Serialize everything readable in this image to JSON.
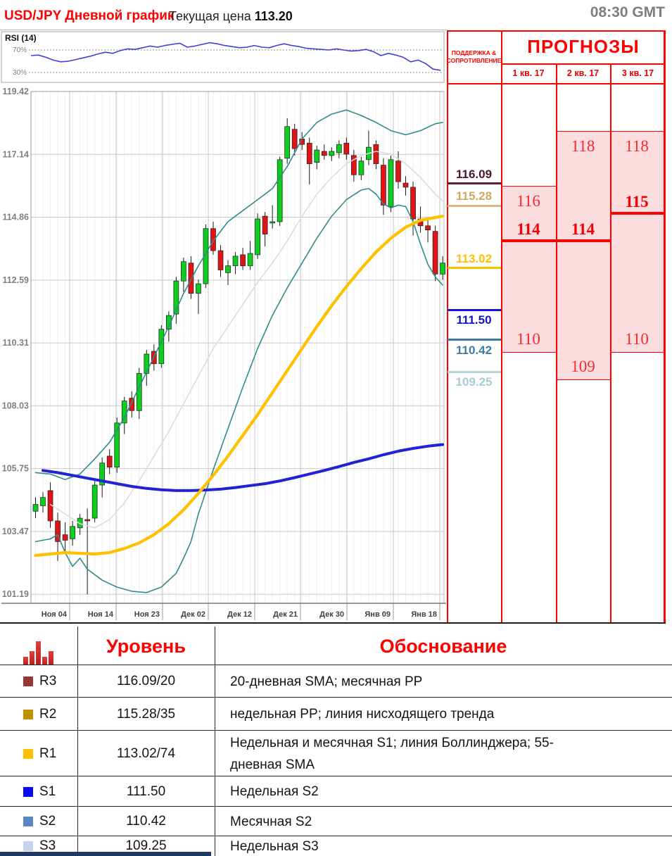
{
  "header": {
    "title": "USD/JPY Дневной график",
    "price_label": "Текущая цена",
    "price_value": "113.20",
    "gmt": "08:30 GMT"
  },
  "rsi": {
    "label": "RSI (14)",
    "upper_label": "70%",
    "lower_label": "30%",
    "upper_value": 70,
    "lower_value": 30,
    "series": [
      60,
      61,
      57,
      52,
      49,
      50,
      53,
      56,
      59,
      63,
      66,
      64,
      69,
      72,
      71,
      74,
      77,
      75,
      78,
      80,
      82,
      75,
      77,
      80,
      83,
      81,
      78,
      76,
      74,
      75,
      78,
      75,
      74,
      78,
      81,
      78,
      76,
      73,
      72,
      71,
      70,
      72,
      70,
      68,
      69,
      71,
      67,
      60,
      64,
      61,
      57,
      49,
      52,
      46,
      36,
      34
    ],
    "line_color": "#4040d8"
  },
  "chart_data": {
    "type": "candlestick",
    "title": "USD/JPY Daily",
    "ylim": [
      101.19,
      119.42
    ],
    "y_ticks": [
      "119.42",
      "117.14",
      "114.86",
      "112.59",
      "110.31",
      "108.03",
      "105.75",
      "103.47",
      "101.19"
    ],
    "x_ticks": [
      "Ноя 04",
      "Ноя 14",
      "Ноя 23",
      "Дек 02",
      "Дек 12",
      "Дек 21",
      "Дек 30",
      "Янв 09",
      "Янв 18"
    ],
    "candles": [
      [
        104.2,
        104.7,
        103.95,
        104.45
      ],
      [
        104.4,
        104.9,
        104.15,
        104.7
      ],
      [
        104.95,
        105.25,
        103.6,
        103.85
      ],
      [
        103.85,
        104.15,
        102.4,
        103.1
      ],
      [
        103.35,
        103.8,
        102.7,
        103.15
      ],
      [
        103.2,
        103.85,
        102.95,
        103.65
      ],
      [
        103.6,
        104.1,
        103.35,
        103.95
      ],
      [
        103.9,
        104.3,
        101.19,
        103.85
      ],
      [
        103.95,
        105.35,
        103.8,
        105.15
      ],
      [
        105.15,
        106.15,
        104.7,
        105.95
      ],
      [
        106.2,
        106.45,
        105.55,
        105.8
      ],
      [
        105.8,
        107.6,
        105.6,
        107.4
      ],
      [
        107.4,
        108.35,
        107.0,
        108.2
      ],
      [
        108.3,
        108.55,
        107.6,
        107.85
      ],
      [
        107.85,
        109.4,
        107.55,
        109.2
      ],
      [
        109.2,
        110.05,
        108.75,
        109.9
      ],
      [
        110.0,
        110.25,
        109.3,
        109.55
      ],
      [
        109.55,
        110.95,
        109.4,
        110.8
      ],
      [
        110.8,
        111.45,
        110.35,
        111.3
      ],
      [
        111.35,
        112.7,
        111.0,
        112.55
      ],
      [
        112.55,
        113.4,
        112.15,
        113.25
      ],
      [
        113.2,
        113.45,
        111.9,
        112.1
      ],
      [
        112.1,
        112.6,
        111.35,
        112.45
      ],
      [
        112.45,
        114.6,
        112.3,
        114.45
      ],
      [
        114.45,
        114.7,
        113.5,
        113.65
      ],
      [
        113.65,
        113.85,
        112.7,
        112.95
      ],
      [
        112.85,
        113.3,
        112.4,
        113.1
      ],
      [
        113.1,
        113.6,
        112.8,
        113.45
      ],
      [
        113.5,
        113.75,
        112.95,
        113.1
      ],
      [
        113.1,
        114.0,
        112.95,
        113.55
      ],
      [
        113.5,
        115.0,
        113.35,
        114.8
      ],
      [
        114.9,
        115.05,
        113.8,
        114.25
      ],
      [
        114.65,
        115.3,
        114.45,
        114.7
      ],
      [
        114.7,
        117.05,
        114.55,
        116.95
      ],
      [
        117.0,
        118.45,
        116.8,
        118.15
      ],
      [
        118.05,
        118.25,
        117.1,
        117.35
      ],
      [
        117.7,
        117.95,
        117.3,
        117.5
      ],
      [
        117.55,
        117.75,
        116.05,
        116.8
      ],
      [
        116.85,
        117.45,
        116.6,
        117.3
      ],
      [
        117.25,
        117.5,
        116.95,
        117.1
      ],
      [
        117.1,
        117.4,
        116.9,
        117.25
      ],
      [
        117.2,
        117.65,
        117.0,
        117.5
      ],
      [
        117.55,
        117.75,
        116.95,
        117.15
      ],
      [
        117.1,
        117.3,
        116.15,
        116.4
      ],
      [
        116.4,
        117.05,
        116.2,
        116.9
      ],
      [
        116.95,
        118.0,
        116.75,
        117.4
      ],
      [
        117.5,
        117.65,
        116.6,
        116.8
      ],
      [
        116.75,
        117.0,
        114.95,
        115.3
      ],
      [
        115.25,
        117.1,
        115.05,
        116.95
      ],
      [
        116.9,
        117.25,
        115.9,
        116.15
      ],
      [
        116.1,
        116.35,
        115.65,
        115.95
      ],
      [
        115.95,
        116.15,
        114.2,
        114.8
      ],
      [
        114.8,
        115.25,
        114.3,
        114.55
      ],
      [
        114.55,
        114.75,
        113.95,
        114.4
      ],
      [
        114.35,
        114.55,
        112.55,
        112.8
      ],
      [
        112.8,
        113.45,
        112.6,
        113.2
      ]
    ],
    "overlays": {
      "bollinger_upper": [
        [
          0,
          105.6
        ],
        [
          2,
          105.55
        ],
        [
          4,
          105.35
        ],
        [
          6,
          105.55
        ],
        [
          8,
          106.1
        ],
        [
          10,
          106.7
        ],
        [
          12,
          107.6
        ],
        [
          14,
          108.7
        ],
        [
          16,
          109.8
        ],
        [
          18,
          110.9
        ],
        [
          20,
          112.1
        ],
        [
          22,
          113.1
        ],
        [
          24,
          114.0
        ],
        [
          26,
          114.7
        ],
        [
          28,
          115.1
        ],
        [
          30,
          115.5
        ],
        [
          32,
          115.9
        ],
        [
          34,
          116.7
        ],
        [
          36,
          117.7
        ],
        [
          38,
          118.3
        ],
        [
          40,
          118.6
        ],
        [
          42,
          118.75
        ],
        [
          44,
          118.55
        ],
        [
          46,
          118.3
        ],
        [
          48,
          118.0
        ],
        [
          50,
          117.85
        ],
        [
          52,
          118.0
        ],
        [
          54,
          118.25
        ],
        [
          55,
          118.3
        ]
      ],
      "bollinger_lower": [
        [
          0,
          103.1
        ],
        [
          2,
          103.2
        ],
        [
          3,
          103.35
        ],
        [
          4,
          102.7
        ],
        [
          5,
          102.2
        ],
        [
          6,
          102.5
        ],
        [
          7,
          102.1
        ],
        [
          9,
          101.7
        ],
        [
          11,
          101.45
        ],
        [
          13,
          101.3
        ],
        [
          15,
          101.25
        ],
        [
          17,
          101.45
        ],
        [
          19,
          101.95
        ],
        [
          20,
          102.5
        ],
        [
          21,
          103.1
        ],
        [
          22,
          104.1
        ],
        [
          24,
          105.7
        ],
        [
          26,
          107.2
        ],
        [
          28,
          108.7
        ],
        [
          30,
          110.1
        ],
        [
          32,
          111.3
        ],
        [
          34,
          112.3
        ],
        [
          36,
          113.2
        ],
        [
          38,
          114.1
        ],
        [
          40,
          114.9
        ],
        [
          42,
          115.5
        ],
        [
          44,
          115.85
        ],
        [
          45,
          115.9
        ],
        [
          46,
          115.7
        ],
        [
          47,
          115.35
        ],
        [
          48,
          115.2
        ],
        [
          49,
          115.3
        ],
        [
          50,
          115.25
        ],
        [
          51,
          114.7
        ],
        [
          52,
          113.9
        ],
        [
          53,
          113.15
        ],
        [
          54,
          112.7
        ],
        [
          55,
          112.4
        ]
      ],
      "sma20": [
        [
          2,
          104.45
        ],
        [
          4,
          104.1
        ],
        [
          6,
          103.75
        ],
        [
          8,
          103.6
        ],
        [
          10,
          103.9
        ],
        [
          12,
          104.5
        ],
        [
          14,
          105.3
        ],
        [
          16,
          106.2
        ],
        [
          18,
          107.1
        ],
        [
          20,
          108.1
        ],
        [
          22,
          109.1
        ],
        [
          24,
          110.1
        ],
        [
          26,
          110.9
        ],
        [
          28,
          111.7
        ],
        [
          30,
          112.5
        ],
        [
          32,
          113.2
        ],
        [
          34,
          114.0
        ],
        [
          36,
          114.9
        ],
        [
          38,
          115.7
        ],
        [
          40,
          116.3
        ],
        [
          42,
          116.8
        ],
        [
          44,
          117.1
        ],
        [
          46,
          117.25
        ],
        [
          48,
          117.15
        ],
        [
          50,
          116.8
        ],
        [
          52,
          116.3
        ],
        [
          54,
          115.7
        ],
        [
          55,
          115.45
        ]
      ],
      "sma55": [
        [
          0,
          102.6
        ],
        [
          4,
          102.7
        ],
        [
          8,
          102.65
        ],
        [
          10,
          102.7
        ],
        [
          12,
          102.85
        ],
        [
          14,
          103.05
        ],
        [
          16,
          103.35
        ],
        [
          18,
          103.75
        ],
        [
          20,
          104.25
        ],
        [
          22,
          104.85
        ],
        [
          24,
          105.5
        ],
        [
          26,
          106.2
        ],
        [
          28,
          106.95
        ],
        [
          30,
          107.7
        ],
        [
          32,
          108.5
        ],
        [
          34,
          109.3
        ],
        [
          36,
          110.1
        ],
        [
          38,
          110.9
        ],
        [
          40,
          111.65
        ],
        [
          42,
          112.35
        ],
        [
          44,
          113.0
        ],
        [
          46,
          113.6
        ],
        [
          48,
          114.1
        ],
        [
          50,
          114.5
        ],
        [
          52,
          114.75
        ],
        [
          54,
          114.85
        ],
        [
          55,
          114.9
        ]
      ],
      "sma200": [
        [
          1,
          105.68
        ],
        [
          3,
          105.6
        ],
        [
          5,
          105.5
        ],
        [
          7,
          105.4
        ],
        [
          9,
          105.3
        ],
        [
          11,
          105.2
        ],
        [
          13,
          105.1
        ],
        [
          15,
          105.03
        ],
        [
          17,
          104.98
        ],
        [
          19,
          104.95
        ],
        [
          21,
          104.95
        ],
        [
          23,
          104.97
        ],
        [
          25,
          105.0
        ],
        [
          27,
          105.06
        ],
        [
          29,
          105.13
        ],
        [
          31,
          105.2
        ],
        [
          33,
          105.3
        ],
        [
          35,
          105.42
        ],
        [
          37,
          105.55
        ],
        [
          39,
          105.68
        ],
        [
          41,
          105.82
        ],
        [
          43,
          105.97
        ],
        [
          45,
          106.1
        ],
        [
          47,
          106.25
        ],
        [
          49,
          106.38
        ],
        [
          51,
          106.48
        ],
        [
          53,
          106.56
        ],
        [
          55,
          106.62
        ]
      ]
    },
    "colors": {
      "up": "#0bce1d",
      "down": "#df1414",
      "wick": "#1a1a1a",
      "bollinger": "#2e8c8c",
      "sma20": "#dcdcdc",
      "sma55": "#ffc000",
      "sma200": "#2121d6"
    }
  },
  "panel": {
    "sr_title_line1": "ПОДДЕРЖКА &",
    "sr_title_line2": "СОПРОТИВЛЕНИЕ",
    "title": "ПРОГНОЗЫ",
    "accent": "#ff0000",
    "pink": "#fbdde0",
    "levels": [
      {
        "label": "116.09",
        "price": 116.09,
        "side": "resistance",
        "color": "#5c1f3c",
        "text_color": "#4a1430"
      },
      {
        "label": "115.28",
        "price": 115.28,
        "side": "resistance",
        "color": "#d8b97c",
        "text_color": "#cfa95e"
      },
      {
        "label": "113.02",
        "price": 113.02,
        "side": "resistance",
        "color": "#ffc000",
        "text_color": "#ffc000"
      },
      {
        "label": "111.50",
        "price": 111.5,
        "side": "support",
        "color": "#1414dc",
        "text_color": "#1414c8"
      },
      {
        "label": "110.42",
        "price": 110.42,
        "side": "support",
        "color": "#3e7c9e",
        "text_color": "#3e7c9e"
      },
      {
        "label": "109.25",
        "price": 109.25,
        "side": "support",
        "color": "#b5d3dc",
        "text_color": "#a9cbd7"
      }
    ],
    "quarters": [
      {
        "label": "1 кв. 17",
        "hi": 116,
        "lo": 110,
        "pivot": 114,
        "hi_label": "116",
        "lo_label": "110",
        "pivot_label": "114"
      },
      {
        "label": "2 кв. 17",
        "hi": 118,
        "lo": 109,
        "pivot": 114,
        "hi_label": "118",
        "lo_label": "109",
        "pivot_label": "114"
      },
      {
        "label": "3 кв. 17",
        "hi": 118,
        "lo": 110,
        "pivot": 115,
        "hi_label": "118",
        "lo_label": "110",
        "pivot_label": "115"
      }
    ]
  },
  "table": {
    "headers": [
      "Уровень",
      "Обоснование"
    ],
    "rows": [
      {
        "id": "R3",
        "color": "#973636",
        "level": "116.09/20",
        "reason": "20-дневная SMA; месячная PP"
      },
      {
        "id": "R2",
        "color": "#bf9000",
        "level": "115.28/35",
        "reason": "недельная PP; линия нисходящего тренда"
      },
      {
        "id": "R1",
        "color": "#ffc000",
        "level": "113.02/74",
        "reason": "Недельная и месячная S1; линия Боллинджера; 55-дневная SMA"
      },
      {
        "id": "S1",
        "color": "#0a0af0",
        "level": "111.50",
        "reason": "Недельная S2"
      },
      {
        "id": "S2",
        "color": "#5b86c2",
        "level": "110.42",
        "reason": "Месячная S2"
      },
      {
        "id": "S3",
        "color": "#c5d5ec",
        "level": "109.25",
        "reason": "Недельная S3"
      }
    ]
  }
}
